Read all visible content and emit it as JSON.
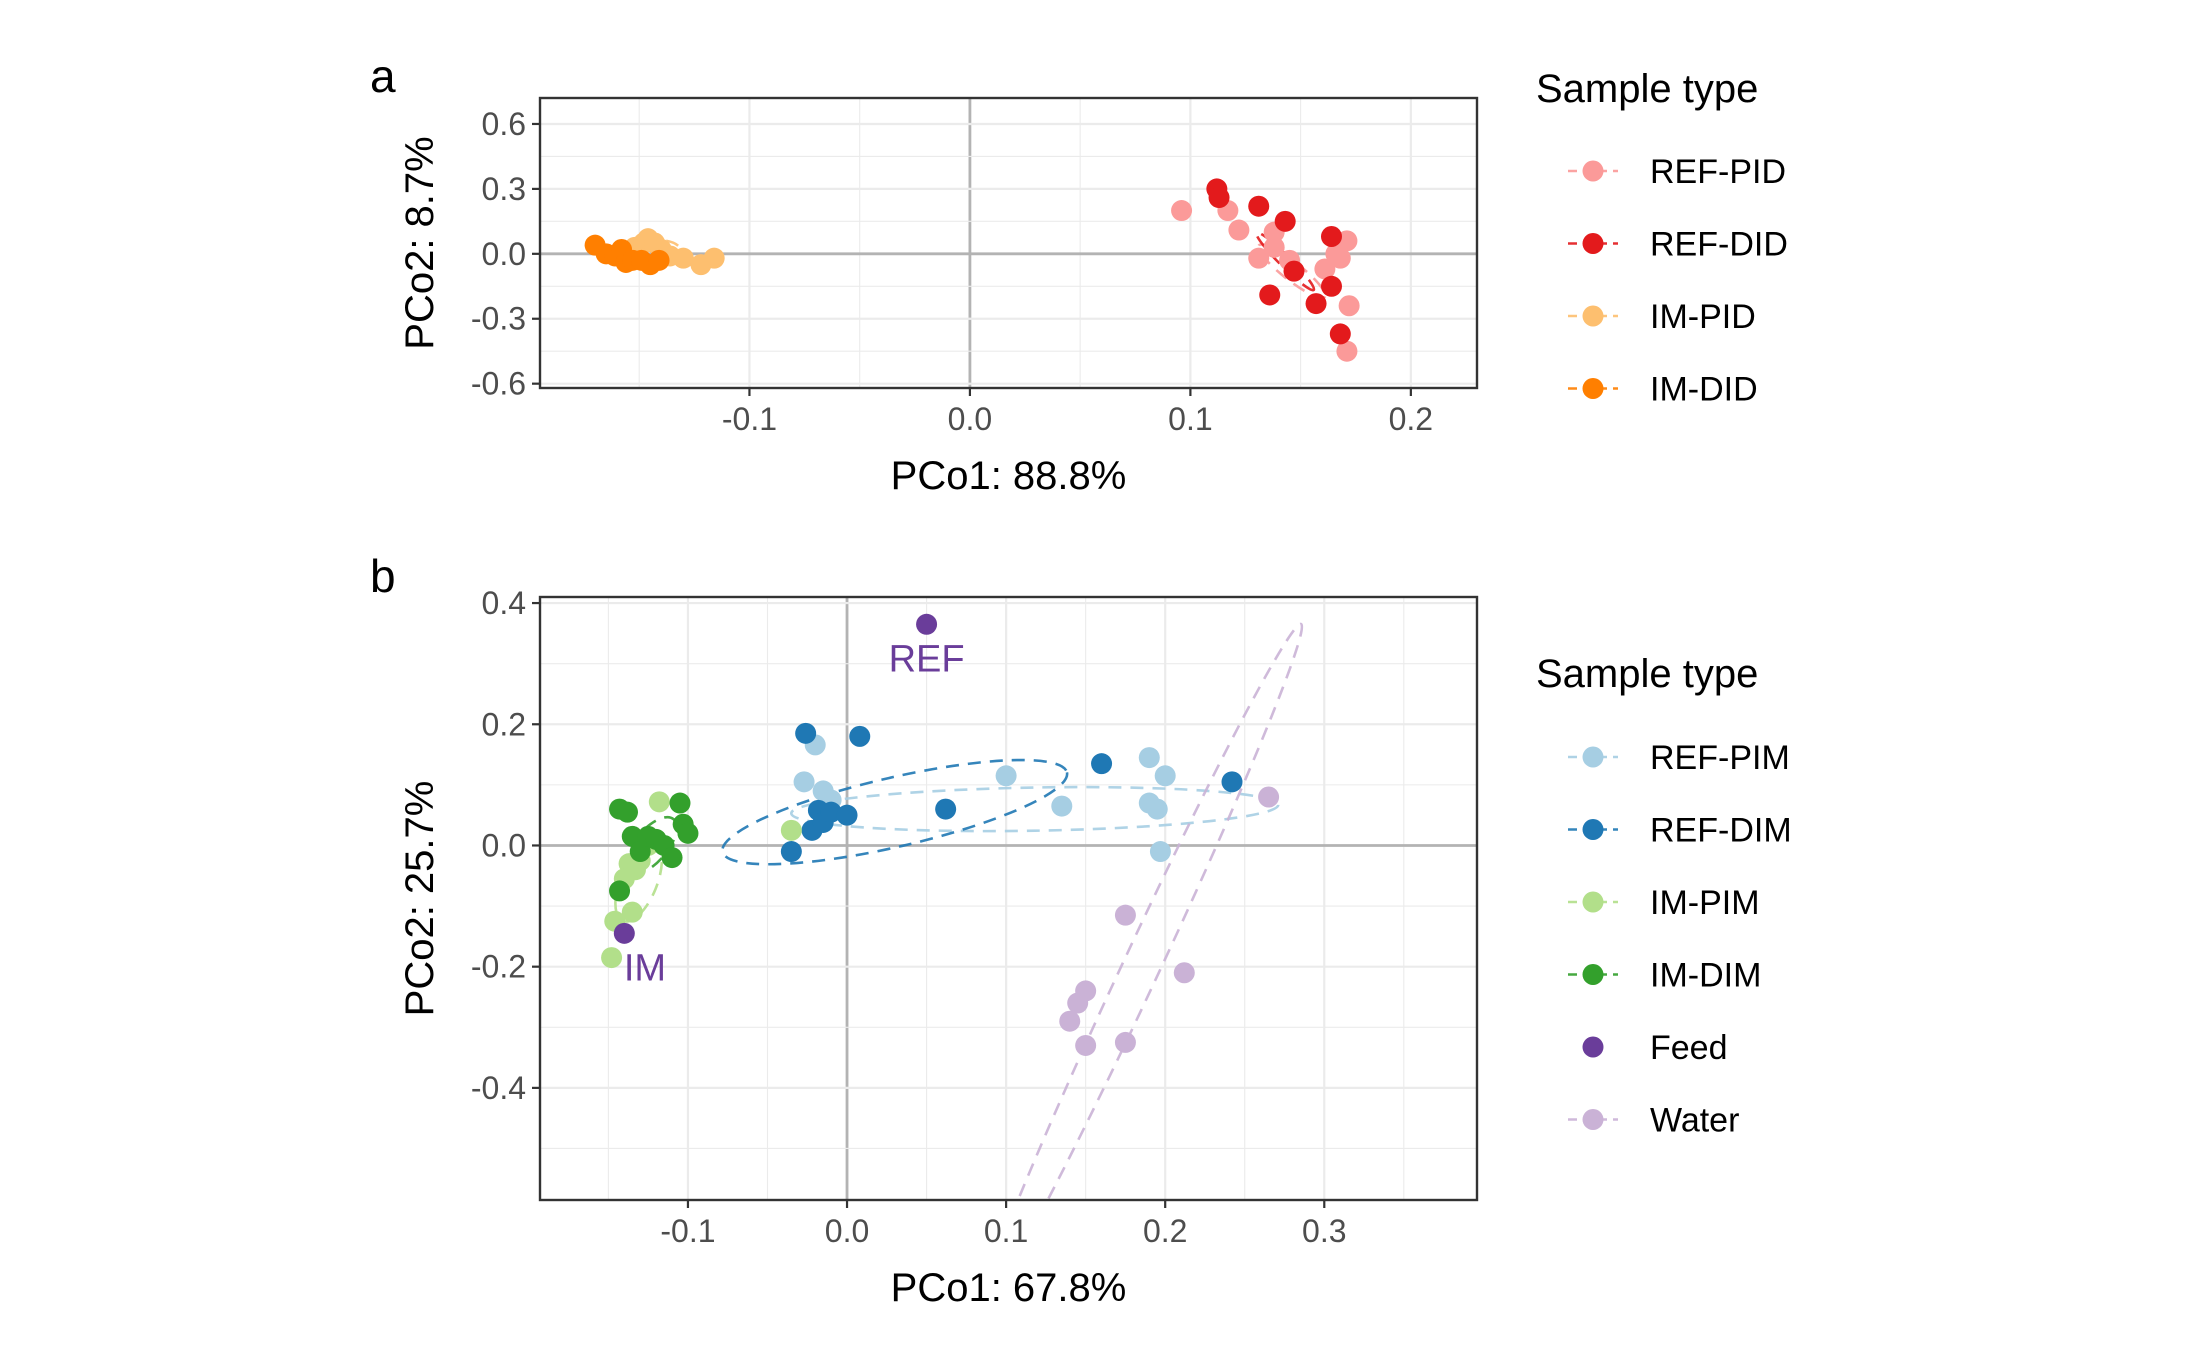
{
  "chart_data": [
    {
      "panel_label": "a",
      "type": "scatter",
      "xlabel": "PCo1: 88.8%",
      "ylabel": "PCo2: 8.7%",
      "xlim": [
        -0.195,
        0.23
      ],
      "ylim": [
        -0.62,
        0.72
      ],
      "x_ticks": [
        -0.1,
        0.0,
        0.1,
        0.2
      ],
      "x_tick_labels": [
        "-0.1",
        "0.0",
        "0.1",
        "0.2"
      ],
      "y_ticks": [
        -0.6,
        -0.3,
        0.0,
        0.3,
        0.6
      ],
      "y_tick_labels": [
        "-0.6",
        "-0.3",
        "0.0",
        "0.3",
        "0.6"
      ],
      "grid": true,
      "legend": {
        "title": "Sample type",
        "placement": "right",
        "entries": [
          "REF-PID",
          "REF-DID",
          "IM-PID",
          "IM-DID"
        ]
      },
      "series": [
        {
          "name": "REF-PID",
          "color": "#fb9a99",
          "points": [
            [
              0.096,
              0.2
            ],
            [
              0.117,
              0.2
            ],
            [
              0.122,
              0.11
            ],
            [
              0.131,
              -0.02
            ],
            [
              0.138,
              0.1
            ],
            [
              0.138,
              0.03
            ],
            [
              0.145,
              -0.03
            ],
            [
              0.161,
              -0.07
            ],
            [
              0.166,
              0.0
            ],
            [
              0.168,
              -0.02
            ],
            [
              0.171,
              0.06
            ],
            [
              0.172,
              -0.24
            ],
            [
              0.171,
              -0.45
            ]
          ],
          "ellipse": {
            "cx": 0.146,
            "cy": -0.08,
            "rx": 0.0605,
            "ry": 0.06,
            "angle": 38
          }
        },
        {
          "name": "REF-DID",
          "color": "#e31a1c",
          "points": [
            [
              0.112,
              0.3
            ],
            [
              0.113,
              0.26
            ],
            [
              0.131,
              0.22
            ],
            [
              0.143,
              0.15
            ],
            [
              0.136,
              -0.19
            ],
            [
              0.147,
              -0.08
            ],
            [
              0.157,
              -0.23
            ],
            [
              0.164,
              0.08
            ],
            [
              0.164,
              -0.15
            ],
            [
              0.168,
              -0.37
            ]
          ],
          "ellipse": {
            "cx": 0.143,
            "cy": -0.035,
            "rx": 0.0585,
            "ry": 0.036,
            "angle": 45
          }
        },
        {
          "name": "IM-PID",
          "color": "#fdbf6f",
          "points": [
            [
              -0.155,
              0.0
            ],
            [
              -0.152,
              0.03
            ],
            [
              -0.148,
              0.05
            ],
            [
              -0.146,
              0.07
            ],
            [
              -0.143,
              0.05
            ],
            [
              -0.14,
              0.02
            ],
            [
              -0.136,
              -0.01
            ],
            [
              -0.13,
              -0.02
            ],
            [
              -0.122,
              -0.05
            ],
            [
              -0.116,
              -0.02
            ]
          ],
          "ellipse": {
            "cx": -0.1405,
            "cy": 0.005,
            "rx": 0.0315,
            "ry": 0.082,
            "angle": 0
          }
        },
        {
          "name": "IM-DID",
          "color": "#ff7f00",
          "points": [
            [
              -0.17,
              0.04
            ],
            [
              -0.165,
              0.0
            ],
            [
              -0.161,
              -0.01
            ],
            [
              -0.158,
              0.02
            ],
            [
              -0.156,
              -0.04
            ],
            [
              -0.153,
              -0.03
            ],
            [
              -0.149,
              -0.03
            ],
            [
              -0.145,
              -0.05
            ],
            [
              -0.141,
              -0.03
            ]
          ],
          "ellipse": {
            "cx": -0.156,
            "cy": 0.0,
            "rx": 0.016,
            "ry": 0.058,
            "angle": 0
          }
        }
      ]
    },
    {
      "panel_label": "b",
      "type": "scatter",
      "xlabel": "PCo1: 67.8%",
      "ylabel": "PCo2: 25.7%",
      "xlim": [
        -0.193,
        0.396
      ],
      "ylim": [
        -0.585,
        0.41
      ],
      "x_ticks": [
        -0.1,
        0.0,
        0.1,
        0.2,
        0.3
      ],
      "x_tick_labels": [
        "-0.1",
        "0.0",
        "0.1",
        "0.2",
        "0.3"
      ],
      "y_ticks": [
        -0.4,
        -0.2,
        0.0,
        0.2,
        0.4
      ],
      "y_tick_labels": [
        "-0.4",
        "-0.2",
        "0.0",
        "0.2",
        "0.4"
      ],
      "grid": true,
      "legend": {
        "title": "Sample type",
        "placement": "right",
        "entries": [
          "REF-PIM",
          "REF-DIM",
          "IM-PIM",
          "IM-DIM",
          "Feed",
          "Water"
        ]
      },
      "annotations": [
        {
          "text": "REF",
          "x": 0.05,
          "y": 0.31,
          "color": "#6a3d9a"
        },
        {
          "text": "IM",
          "x": -0.127,
          "y": -0.2,
          "color": "#6a3d9a"
        }
      ],
      "series": [
        {
          "name": "REF-PIM",
          "color": "#a6cee3",
          "points": [
            [
              -0.027,
              0.105
            ],
            [
              -0.02,
              0.166
            ],
            [
              -0.015,
              0.09
            ],
            [
              -0.01,
              0.075
            ],
            [
              0.1,
              0.115
            ],
            [
              0.135,
              0.065
            ],
            [
              0.19,
              0.145
            ],
            [
              0.19,
              0.07
            ],
            [
              0.195,
              0.06
            ],
            [
              0.2,
              0.115
            ],
            [
              0.197,
              -0.01
            ]
          ],
          "ellipse": {
            "cx": 0.118,
            "cy": 0.06,
            "rx": 0.248,
            "ry": 0.1,
            "angle": -1
          }
        },
        {
          "name": "REF-DIM",
          "color": "#1f78b4",
          "points": [
            [
              -0.026,
              0.185
            ],
            [
              0.008,
              0.18
            ],
            [
              -0.035,
              -0.01
            ],
            [
              -0.022,
              0.025
            ],
            [
              -0.018,
              0.058
            ],
            [
              -0.015,
              0.038
            ],
            [
              -0.01,
              0.055
            ],
            [
              0.0,
              0.05
            ],
            [
              0.062,
              0.06
            ],
            [
              0.16,
              0.135
            ],
            [
              0.242,
              0.105
            ]
          ],
          "ellipse": {
            "cx": 0.03,
            "cy": 0.055,
            "rx": 0.18,
            "ry": 0.16,
            "angle": -13
          }
        },
        {
          "name": "IM-PIM",
          "color": "#b2df8a",
          "points": [
            [
              -0.035,
              0.025
            ],
            [
              -0.118,
              0.072
            ],
            [
              -0.125,
              0.0
            ],
            [
              -0.13,
              -0.025
            ],
            [
              -0.133,
              -0.04
            ],
            [
              -0.137,
              -0.03
            ],
            [
              -0.14,
              -0.055
            ],
            [
              -0.135,
              -0.11
            ],
            [
              -0.146,
              -0.125
            ],
            [
              -0.148,
              -0.185
            ]
          ],
          "ellipse": {
            "cx": -0.131,
            "cy": -0.06,
            "rx": 0.043,
            "ry": 0.085,
            "angle": -68
          }
        },
        {
          "name": "IM-DIM",
          "color": "#33a02c",
          "points": [
            [
              -0.143,
              0.06
            ],
            [
              -0.138,
              0.055
            ],
            [
              -0.135,
              0.015
            ],
            [
              -0.13,
              -0.01
            ],
            [
              -0.125,
              0.015
            ],
            [
              -0.12,
              0.01
            ],
            [
              -0.115,
              0.0
            ],
            [
              -0.11,
              -0.02
            ],
            [
              -0.105,
              0.07
            ],
            [
              -0.103,
              0.035
            ],
            [
              -0.1,
              0.02
            ],
            [
              -0.143,
              -0.075
            ]
          ],
          "ellipse": {
            "cx": -0.123,
            "cy": 0.0,
            "rx": 0.035,
            "ry": 0.075,
            "angle": -50
          }
        },
        {
          "name": "Feed",
          "color": "#6a3d9a",
          "points": [
            [
              0.05,
              0.365
            ],
            [
              -0.14,
              -0.145
            ]
          ]
        },
        {
          "name": "Water",
          "color": "#cab2d6",
          "points": [
            [
              0.265,
              0.08
            ],
            [
              0.175,
              -0.115
            ],
            [
              0.212,
              -0.21
            ],
            [
              0.15,
              -0.24
            ],
            [
              0.145,
              -0.26
            ],
            [
              0.14,
              -0.29
            ],
            [
              0.15,
              -0.33
            ],
            [
              0.175,
              -0.325
            ]
          ],
          "ellipse": {
            "cx": 0.185,
            "cy": -0.2,
            "rx": 0.385,
            "ry": 0.085,
            "angle": -65
          }
        }
      ]
    }
  ]
}
